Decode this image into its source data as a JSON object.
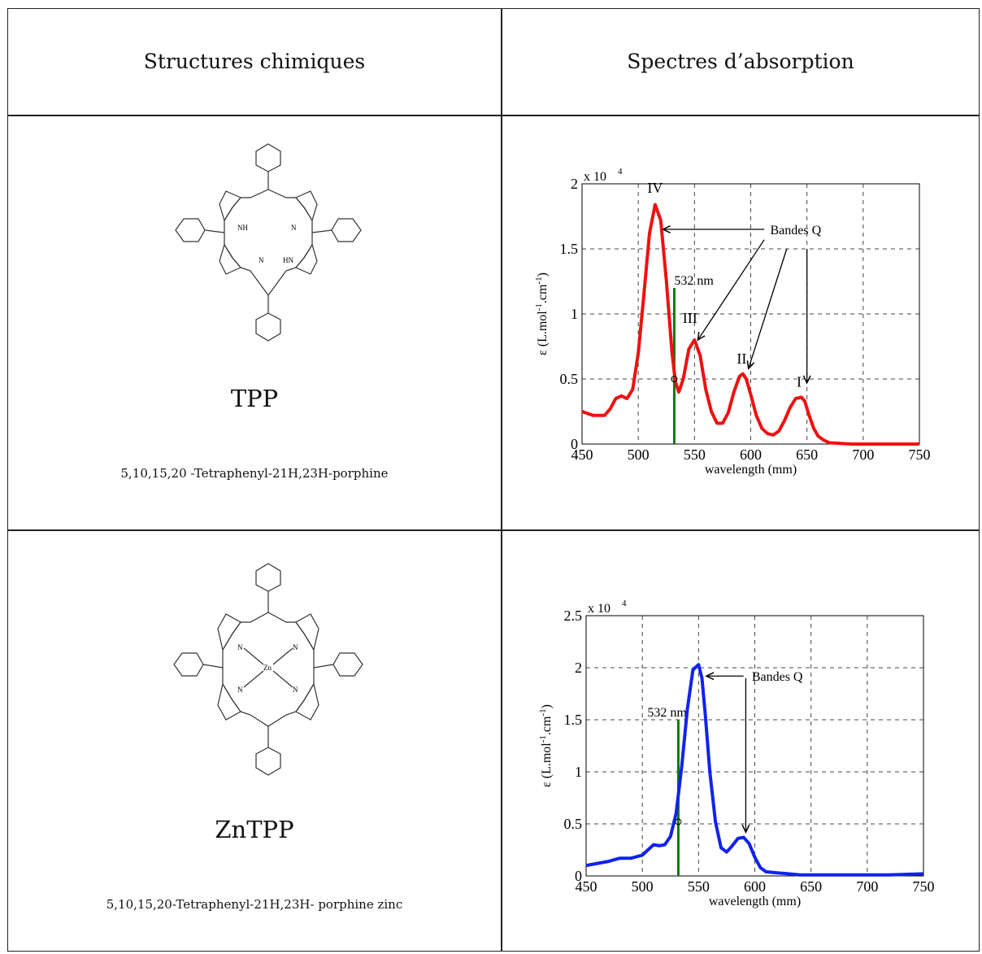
{
  "headers": {
    "structures": "Structures chimiques",
    "spectra": "Spectres d’absorption"
  },
  "rows": [
    {
      "name": "TPP",
      "full_name": "5,10,15,20 -Tetraphenyl-21H,23H-porphine",
      "structure_labels": {
        "nh1": "NH",
        "n1": "N",
        "n2": "N",
        "hn": "HN"
      }
    },
    {
      "name": "ZnTPP",
      "full_name": "5,10,15,20-Tetraphenyl-21H,23H- porphine zinc",
      "structure_labels": {
        "n1": "N",
        "n2": "N",
        "n3": "N",
        "n4": "N",
        "zn": "Zn"
      }
    }
  ],
  "chart_data": [
    {
      "type": "line",
      "xlabel": "wavelength (mm)",
      "ylabel": "ε (L.mol",
      "ylabel_sup1": "-1",
      "ylabel_mid": ".cm",
      "ylabel_sup2": "-1",
      "ylabel_end": ")",
      "scale_prefix": "x 10",
      "scale_exp": "4",
      "xlim": [
        450,
        750
      ],
      "ylim": [
        0,
        2
      ],
      "xticks": [
        "450",
        "500",
        "550",
        "600",
        "650",
        "700",
        "750"
      ],
      "yticks": [
        "0",
        "0.5",
        "1",
        "1.5",
        "2"
      ],
      "grid": true,
      "color": "#ee1111",
      "series": [
        {
          "x": [
            450,
            460,
            470,
            475,
            480,
            485,
            490,
            495,
            500,
            505,
            510,
            515,
            520,
            525,
            530,
            533,
            536,
            540,
            545,
            550,
            555,
            560,
            565,
            570,
            575,
            580,
            585,
            590,
            593,
            596,
            600,
            605,
            610,
            615,
            620,
            625,
            630,
            635,
            640,
            645,
            648,
            652,
            656,
            660,
            665,
            670,
            680,
            690,
            700,
            720,
            750
          ],
          "y": [
            0.25,
            0.22,
            0.22,
            0.27,
            0.35,
            0.37,
            0.35,
            0.42,
            0.7,
            1.15,
            1.62,
            1.84,
            1.72,
            1.25,
            0.7,
            0.48,
            0.4,
            0.5,
            0.73,
            0.8,
            0.68,
            0.42,
            0.25,
            0.16,
            0.16,
            0.24,
            0.4,
            0.52,
            0.54,
            0.5,
            0.38,
            0.22,
            0.12,
            0.08,
            0.07,
            0.1,
            0.18,
            0.28,
            0.35,
            0.36,
            0.33,
            0.22,
            0.12,
            0.06,
            0.03,
            0.01,
            0.005,
            0,
            0,
            0,
            0
          ]
        }
      ],
      "laser_line": {
        "x": 532,
        "y_top": 1.2,
        "label": "532 nm",
        "color": "#117711"
      },
      "marker_x": 532,
      "marker_y": 0.5,
      "band_labels": [
        {
          "text": "IV",
          "x": 515,
          "y": 1.93
        },
        {
          "text": "III",
          "x": 546,
          "y": 0.93
        },
        {
          "text": "II",
          "x": 592,
          "y": 0.62
        },
        {
          "text": "I",
          "x": 643,
          "y": 0.44
        }
      ],
      "annotation": "Bandes Q",
      "annotation_pos": {
        "x": 640,
        "y": 1.65
      },
      "arrows": [
        {
          "from": [
            612,
            1.65
          ],
          "to": [
            522,
            1.65
          ]
        },
        {
          "from": [
            612,
            1.57
          ],
          "to": [
            553,
            0.8
          ]
        },
        {
          "from": [
            632,
            1.5
          ],
          "to": [
            598,
            0.58
          ]
        },
        {
          "from": [
            650,
            1.5
          ],
          "to": [
            650,
            0.47
          ]
        }
      ]
    },
    {
      "type": "line",
      "xlabel": "wavelength (mm)",
      "ylabel": "ε (L.mol",
      "ylabel_sup1": "-1",
      "ylabel_mid": ".cm",
      "ylabel_sup2": "-1",
      "ylabel_end": ")",
      "scale_prefix": "x 10",
      "scale_exp": "4",
      "xlim": [
        450,
        750
      ],
      "ylim": [
        0,
        2.5
      ],
      "xticks": [
        "450",
        "500",
        "550",
        "600",
        "650",
        "700",
        "750"
      ],
      "yticks": [
        "0",
        "0.5",
        "1",
        "1.5",
        "2",
        "2.5"
      ],
      "grid": true,
      "color": "#1122ee",
      "series": [
        {
          "x": [
            450,
            460,
            470,
            480,
            490,
            500,
            505,
            510,
            515,
            520,
            525,
            530,
            535,
            540,
            545,
            550,
            553,
            556,
            560,
            565,
            570,
            575,
            580,
            585,
            590,
            595,
            600,
            605,
            610,
            620,
            630,
            640,
            650,
            680,
            720,
            750
          ],
          "y": [
            0.1,
            0.12,
            0.14,
            0.17,
            0.17,
            0.2,
            0.25,
            0.3,
            0.29,
            0.3,
            0.38,
            0.6,
            1.05,
            1.6,
            1.98,
            2.03,
            1.9,
            1.55,
            1.0,
            0.52,
            0.27,
            0.23,
            0.29,
            0.36,
            0.37,
            0.31,
            0.18,
            0.08,
            0.04,
            0.03,
            0.02,
            0.01,
            0.01,
            0.01,
            0.01,
            0.02
          ]
        }
      ],
      "laser_line": {
        "x": 532,
        "y_top": 1.5,
        "label": "532 nm",
        "color": "#117711"
      },
      "marker_x": 532,
      "marker_y": 0.52,
      "band_labels": [],
      "annotation": "Bandes Q",
      "annotation_pos": {
        "x": 620,
        "y": 1.92
      },
      "arrows": [
        {
          "from": [
            590,
            1.92
          ],
          "to": [
            557,
            1.92
          ]
        },
        {
          "from": [
            592,
            1.9
          ],
          "to": [
            592,
            0.42
          ]
        }
      ]
    }
  ]
}
